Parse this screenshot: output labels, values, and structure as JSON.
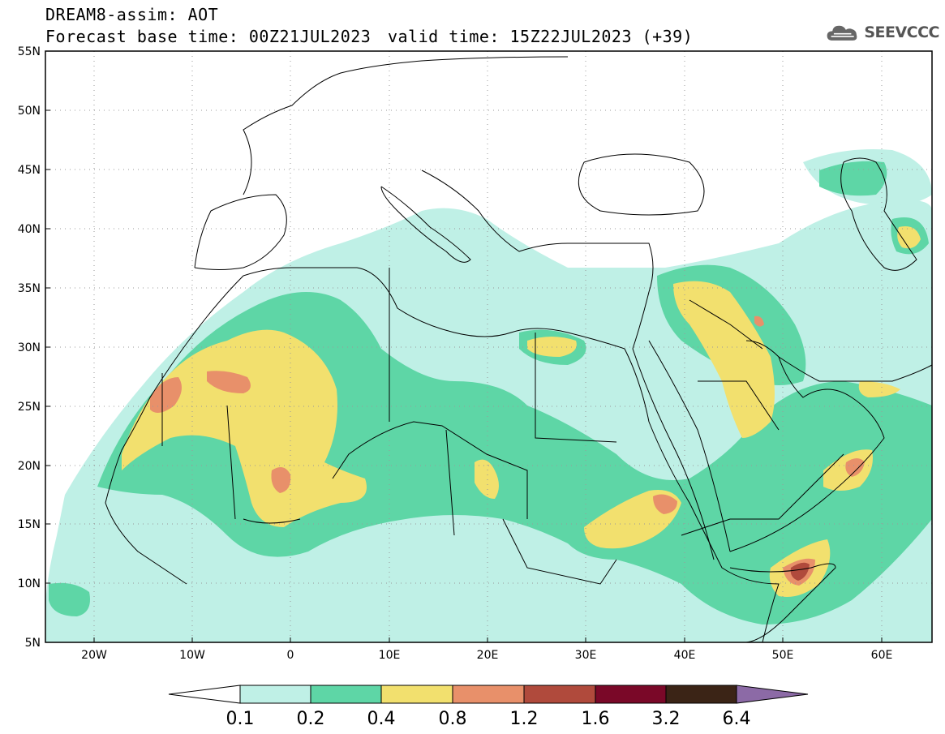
{
  "header": {
    "title": "DREAM8-assim: AOT",
    "base_time": "Forecast base time: 00Z21JUL2023",
    "valid_time": "valid time: 15Z22JUL2023 (+39)",
    "logo_text": "SEEVCCC"
  },
  "map": {
    "lat_labels": [
      "55N",
      "50N",
      "45N",
      "40N",
      "35N",
      "30N",
      "25N",
      "20N",
      "15N",
      "10N",
      "5N"
    ],
    "lon_labels": [
      "20W",
      "10W",
      "0",
      "10E",
      "20E",
      "30E",
      "40E",
      "50E",
      "60E"
    ],
    "extent": {
      "lon_min": -25,
      "lon_max": 65,
      "lat_min": 5,
      "lat_max": 55
    },
    "grid": "dotted",
    "colors": {
      "land_boundary": "#000000",
      "ocean": "#ffffff"
    }
  },
  "colorbar": {
    "labels": [
      "0.1",
      "0.2",
      "0.4",
      "0.8",
      "1.2",
      "1.6",
      "3.2",
      "6.4"
    ],
    "colors": [
      "#ffffff",
      "#bff0e6",
      "#5ed6a6",
      "#f2e06e",
      "#e8906a",
      "#b04a3c",
      "#7a0828",
      "#3b2416",
      "#8c6aa6"
    ]
  }
}
